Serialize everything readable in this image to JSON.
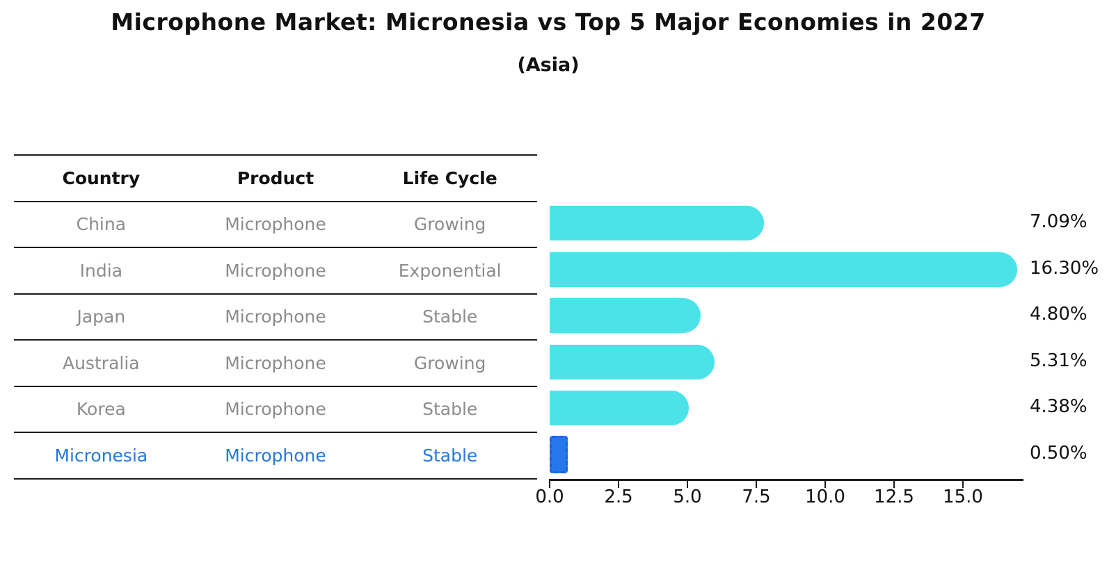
{
  "title": "Microphone Market: Micronesia vs Top 5 Major Economies in 2027",
  "subtitle": "(Asia)",
  "table": {
    "headers": [
      "Country",
      "Product",
      "Life Cycle"
    ],
    "rows": [
      {
        "country": "China",
        "product": "Microphone",
        "life_cycle": "Growing",
        "highlight": false
      },
      {
        "country": "India",
        "product": "Microphone",
        "life_cycle": "Exponential",
        "highlight": false
      },
      {
        "country": "Japan",
        "product": "Microphone",
        "life_cycle": "Stable",
        "highlight": false
      },
      {
        "country": "Australia",
        "product": "Microphone",
        "life_cycle": "Growing",
        "highlight": false
      },
      {
        "country": "Korea",
        "product": "Microphone",
        "life_cycle": "Stable",
        "highlight": false
      },
      {
        "country": "Micronesia",
        "product": "Microphone",
        "life_cycle": "Stable",
        "highlight": true
      }
    ]
  },
  "chart_data": {
    "type": "bar",
    "orientation": "horizontal",
    "title": "Microphone Market: Micronesia vs Top 5 Major Economies in 2027",
    "subtitle": "(Asia)",
    "categories": [
      "China",
      "India",
      "Japan",
      "Australia",
      "Korea",
      "Micronesia"
    ],
    "values": [
      7.09,
      16.3,
      4.8,
      5.31,
      4.38,
      0.5
    ],
    "value_labels": [
      "7.09%",
      "16.30%",
      "4.80%",
      "5.31%",
      "4.38%",
      "0.50%"
    ],
    "unit": "%",
    "xlim": [
      0,
      17.2
    ],
    "x_ticks": [
      0.0,
      2.5,
      5.0,
      7.5,
      10.0,
      12.5,
      15.0
    ],
    "x_tick_labels": [
      "0.0",
      "2.5",
      "5.0",
      "7.5",
      "10.0",
      "12.5",
      "15.0"
    ],
    "grid": false,
    "legend": false,
    "highlight_index": 5
  },
  "colors": {
    "bar_fill": "#4be3e8",
    "highlight_fill": "#2478ea",
    "highlight_border": "#1c64db",
    "highlight_text": "#2878d8",
    "row_text": "#8c8c8c",
    "header_text": "#111111",
    "line": "#1c1c1c"
  }
}
